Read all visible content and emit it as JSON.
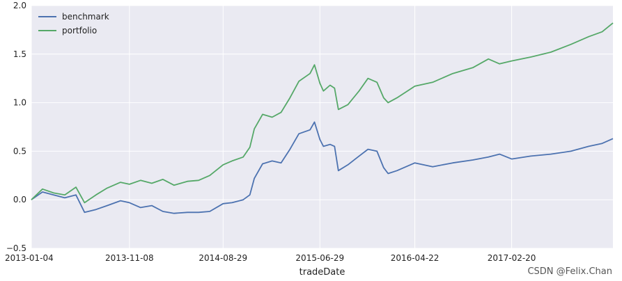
{
  "chart_data": {
    "type": "line",
    "title": "",
    "xlabel": "tradeDate",
    "ylabel": "",
    "x_range": [
      "2013-01-04",
      "2018-01-04"
    ],
    "ylim": [
      -0.5,
      2.0
    ],
    "y_ticks": [
      "−0.5",
      "0.0",
      "0.5",
      "1.0",
      "1.5",
      "2.0"
    ],
    "x_ticks": [
      "2013-01-04",
      "2013-11-08",
      "2014-08-29",
      "2015-06-29",
      "2016-04-22",
      "2017-02-20"
    ],
    "grid": true,
    "legend_position": "top-left",
    "background_color": "#EAEAF2",
    "series": [
      {
        "name": "benchmark",
        "color": "#4C72B0",
        "points": [
          [
            "2013-01-04",
            0.0
          ],
          [
            "2013-02-08",
            0.08
          ],
          [
            "2013-03-15",
            0.05
          ],
          [
            "2013-04-19",
            0.02
          ],
          [
            "2013-05-24",
            0.05
          ],
          [
            "2013-06-20",
            -0.13
          ],
          [
            "2013-07-26",
            -0.1
          ],
          [
            "2013-08-30",
            -0.06
          ],
          [
            "2013-10-11",
            -0.01
          ],
          [
            "2013-11-08",
            -0.03
          ],
          [
            "2013-12-13",
            -0.08
          ],
          [
            "2014-01-17",
            -0.06
          ],
          [
            "2014-02-21",
            -0.12
          ],
          [
            "2014-03-28",
            -0.14
          ],
          [
            "2014-05-09",
            -0.13
          ],
          [
            "2014-06-13",
            -0.13
          ],
          [
            "2014-07-18",
            -0.12
          ],
          [
            "2014-08-29",
            -0.04
          ],
          [
            "2014-09-26",
            -0.03
          ],
          [
            "2014-10-31",
            0.0
          ],
          [
            "2014-11-21",
            0.05
          ],
          [
            "2014-12-05",
            0.22
          ],
          [
            "2014-12-31",
            0.37
          ],
          [
            "2015-01-30",
            0.4
          ],
          [
            "2015-02-27",
            0.38
          ],
          [
            "2015-03-27",
            0.52
          ],
          [
            "2015-04-24",
            0.68
          ],
          [
            "2015-05-29",
            0.72
          ],
          [
            "2015-06-12",
            0.8
          ],
          [
            "2015-06-29",
            0.62
          ],
          [
            "2015-07-10",
            0.55
          ],
          [
            "2015-07-31",
            0.57
          ],
          [
            "2015-08-14",
            0.55
          ],
          [
            "2015-08-26",
            0.3
          ],
          [
            "2015-09-25",
            0.36
          ],
          [
            "2015-10-30",
            0.45
          ],
          [
            "2015-11-27",
            0.52
          ],
          [
            "2015-12-25",
            0.5
          ],
          [
            "2016-01-15",
            0.33
          ],
          [
            "2016-01-29",
            0.27
          ],
          [
            "2016-02-26",
            0.3
          ],
          [
            "2016-04-22",
            0.38
          ],
          [
            "2016-06-17",
            0.34
          ],
          [
            "2016-08-19",
            0.38
          ],
          [
            "2016-10-21",
            0.41
          ],
          [
            "2016-12-09",
            0.44
          ],
          [
            "2017-01-13",
            0.47
          ],
          [
            "2017-02-20",
            0.42
          ],
          [
            "2017-04-21",
            0.45
          ],
          [
            "2017-06-23",
            0.47
          ],
          [
            "2017-08-25",
            0.5
          ],
          [
            "2017-10-20",
            0.55
          ],
          [
            "2017-12-01",
            0.58
          ],
          [
            "2018-01-04",
            0.63
          ]
        ]
      },
      {
        "name": "portfolio",
        "color": "#55A868",
        "points": [
          [
            "2013-01-04",
            0.0
          ],
          [
            "2013-02-08",
            0.11
          ],
          [
            "2013-03-15",
            0.07
          ],
          [
            "2013-04-19",
            0.05
          ],
          [
            "2013-05-24",
            0.13
          ],
          [
            "2013-06-20",
            -0.03
          ],
          [
            "2013-07-26",
            0.05
          ],
          [
            "2013-08-30",
            0.12
          ],
          [
            "2013-10-11",
            0.18
          ],
          [
            "2013-11-08",
            0.16
          ],
          [
            "2013-12-13",
            0.2
          ],
          [
            "2014-01-17",
            0.17
          ],
          [
            "2014-02-21",
            0.21
          ],
          [
            "2014-03-28",
            0.15
          ],
          [
            "2014-05-09",
            0.19
          ],
          [
            "2014-06-13",
            0.2
          ],
          [
            "2014-07-18",
            0.25
          ],
          [
            "2014-08-29",
            0.36
          ],
          [
            "2014-09-26",
            0.4
          ],
          [
            "2014-10-31",
            0.44
          ],
          [
            "2014-11-21",
            0.54
          ],
          [
            "2014-12-05",
            0.73
          ],
          [
            "2014-12-31",
            0.88
          ],
          [
            "2015-01-30",
            0.85
          ],
          [
            "2015-02-27",
            0.9
          ],
          [
            "2015-03-27",
            1.05
          ],
          [
            "2015-04-24",
            1.22
          ],
          [
            "2015-05-29",
            1.3
          ],
          [
            "2015-06-12",
            1.39
          ],
          [
            "2015-06-29",
            1.2
          ],
          [
            "2015-07-10",
            1.12
          ],
          [
            "2015-07-31",
            1.18
          ],
          [
            "2015-08-14",
            1.15
          ],
          [
            "2015-08-26",
            0.93
          ],
          [
            "2015-09-25",
            0.98
          ],
          [
            "2015-10-30",
            1.12
          ],
          [
            "2015-11-27",
            1.25
          ],
          [
            "2015-12-25",
            1.21
          ],
          [
            "2016-01-15",
            1.05
          ],
          [
            "2016-01-29",
            1.0
          ],
          [
            "2016-02-26",
            1.05
          ],
          [
            "2016-04-22",
            1.17
          ],
          [
            "2016-06-17",
            1.21
          ],
          [
            "2016-08-19",
            1.3
          ],
          [
            "2016-10-21",
            1.36
          ],
          [
            "2016-12-09",
            1.45
          ],
          [
            "2017-01-13",
            1.4
          ],
          [
            "2017-02-20",
            1.43
          ],
          [
            "2017-04-21",
            1.47
          ],
          [
            "2017-06-23",
            1.52
          ],
          [
            "2017-08-25",
            1.6
          ],
          [
            "2017-10-20",
            1.68
          ],
          [
            "2017-12-01",
            1.73
          ],
          [
            "2018-01-04",
            1.82
          ]
        ]
      }
    ]
  },
  "watermark": "CSDN @Felix.Chan"
}
